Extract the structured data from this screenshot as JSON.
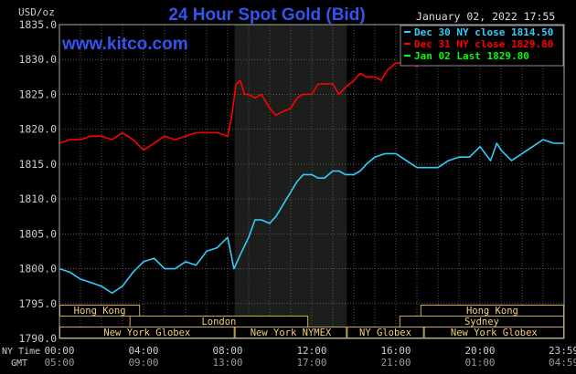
{
  "chart_data": {
    "type": "line",
    "title": "24 Hour Spot Gold (Bid)",
    "watermark": "www.kitco.com",
    "timestamp": "January 02, 2022 17:55",
    "ylabel": "USD/oz",
    "ylim": [
      1790,
      1835
    ],
    "y_ticks": [
      {
        "value": 1790,
        "label": "1790.0"
      },
      {
        "value": 1795,
        "label": "1795.0"
      },
      {
        "value": 1800,
        "label": "1800.0"
      },
      {
        "value": 1805,
        "label": "1805.0"
      },
      {
        "value": 1810,
        "label": "1810.0"
      },
      {
        "value": 1815,
        "label": "1815.0"
      },
      {
        "value": 1820,
        "label": "1820.0"
      },
      {
        "value": 1825,
        "label": "1825.0"
      },
      {
        "value": 1830,
        "label": "1830.0"
      },
      {
        "value": 1835,
        "label": "1835.0"
      }
    ],
    "xlim": [
      0,
      24
    ],
    "x_axis_label_ny": "NY Time",
    "x_axis_label_gmt": "GMT",
    "x_ticks": [
      {
        "value": 0,
        "ny": "00:00",
        "gmt": "05:00"
      },
      {
        "value": 4,
        "ny": "04:00",
        "gmt": "09:00"
      },
      {
        "value": 8,
        "ny": "08:00",
        "gmt": "13:00"
      },
      {
        "value": 12,
        "ny": "12:00",
        "gmt": "17:00"
      },
      {
        "value": 16,
        "ny": "16:00",
        "gmt": "21:00"
      },
      {
        "value": 20,
        "ny": "20:00",
        "gmt": "01:00"
      },
      {
        "value": 23.983,
        "ny": "23:59",
        "gmt": "04:59"
      }
    ],
    "shaded_range": [
      8.333,
      13.667
    ],
    "legend_position": "top-right",
    "legend": [
      {
        "label": "Dec 30 NY close 1814.50",
        "color": "#33ccff"
      },
      {
        "label": "Dec 31 NY close 1829.80",
        "color": "#ff0000"
      },
      {
        "label": "Jan 02 Last 1829.80",
        "color": "#00ff00"
      }
    ],
    "series": [
      {
        "color": "#33ccff",
        "x": [
          0,
          0.5,
          1,
          1.5,
          2,
          2.5,
          3,
          3.5,
          4,
          4.5,
          5,
          5.5,
          6,
          6.5,
          7,
          7.5,
          8,
          8.3,
          8.6,
          9,
          9.3,
          9.6,
          10,
          10.3,
          10.6,
          11,
          11.3,
          11.6,
          12,
          12.3,
          12.6,
          13,
          13.3,
          13.6,
          14,
          14.3,
          14.6,
          15,
          15.5,
          16,
          16.5,
          17,
          17.5,
          18,
          18.5,
          19,
          19.5,
          20,
          20.5,
          20.8,
          21,
          21.5,
          22,
          22.5,
          23,
          23.5,
          23.983
        ],
        "y": [
          1800,
          1799.5,
          1798.5,
          1798,
          1797.5,
          1796.5,
          1797.5,
          1799.5,
          1801,
          1801.5,
          1800,
          1800,
          1801,
          1800.5,
          1802.5,
          1803,
          1804.5,
          1800,
          1802,
          1804.5,
          1807,
          1807,
          1806.5,
          1807.5,
          1809,
          1811,
          1812.5,
          1813.5,
          1813.5,
          1813,
          1813,
          1814,
          1814,
          1813.5,
          1813.5,
          1814,
          1815,
          1816,
          1816.5,
          1816.5,
          1815.5,
          1814.5,
          1814.5,
          1814.5,
          1815.5,
          1816,
          1816,
          1817.5,
          1815.5,
          1818,
          1817,
          1815.5,
          1816.5,
          1817.5,
          1818.5,
          1818,
          1818
        ]
      },
      {
        "color": "#ff0000",
        "x": [
          0,
          0.5,
          1,
          1.5,
          2,
          2.5,
          3,
          3.5,
          4,
          4.5,
          5,
          5.5,
          6,
          6.5,
          7,
          7.5,
          8,
          8.2,
          8.4,
          8.6,
          8.8,
          9,
          9.3,
          9.6,
          10,
          10.3,
          10.6,
          11,
          11.3,
          11.6,
          12,
          12.3,
          12.6,
          13,
          13.3,
          13.6,
          14,
          14.3,
          14.6,
          15,
          15.3,
          15.6,
          16,
          16.3,
          16.6,
          17,
          17.3,
          17.5
        ],
        "y": [
          1818,
          1818.5,
          1818.5,
          1819,
          1819,
          1818.5,
          1819.5,
          1818.5,
          1817,
          1818,
          1819,
          1818.5,
          1819,
          1819.5,
          1819.5,
          1819.5,
          1819,
          1822,
          1826.5,
          1827,
          1825,
          1825,
          1824.5,
          1825,
          1823,
          1822,
          1822.5,
          1823,
          1824.5,
          1825,
          1825,
          1826.5,
          1826.5,
          1826.5,
          1825,
          1826,
          1827,
          1828,
          1827.5,
          1827.5,
          1827,
          1828.5,
          1829.5,
          1829.5,
          1829.5,
          1829,
          1829.5,
          1829.8
        ]
      }
    ],
    "session_rows": [
      [
        {
          "label": "Hong Kong",
          "start": 0,
          "end": 3.833
        },
        {
          "label": "Hong Kong",
          "start": 17.167,
          "end": 24
        }
      ],
      [
        {
          "label": "London",
          "start": 3.333,
          "end": 11.833
        },
        {
          "label": "Sydney",
          "start": 16.167,
          "end": 24
        }
      ],
      [
        {
          "label": "New York Globex",
          "start": 0,
          "end": 8.333
        },
        {
          "label": "New York NYMEX",
          "start": 8.333,
          "end": 13.667
        },
        {
          "label": "NY Globex",
          "start": 13.667,
          "end": 17.333
        },
        {
          "label": "New York Globex",
          "start": 17.333,
          "end": 24
        }
      ]
    ]
  }
}
